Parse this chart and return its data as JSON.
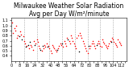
{
  "title": "Milwaukee Weather Solar Radiation",
  "subtitle": "Avg per Day W/m²/minute",
  "background_color": "#ffffff",
  "grid_color": "#aaaaaa",
  "ylim": [
    0.3,
    1.15
  ],
  "yticks": [
    0.4,
    0.5,
    0.6,
    0.7,
    0.8,
    0.9,
    1.0,
    1.1
  ],
  "ytick_labels": [
    "0.4",
    "0.5",
    "0.6",
    "0.7",
    "0.8",
    "0.9",
    "1.0",
    "1.1"
  ],
  "red_points_x": [
    1,
    2,
    3,
    4,
    5,
    6,
    7,
    9,
    10,
    12,
    13,
    14,
    16,
    18,
    20,
    21,
    22,
    23,
    25,
    26,
    27,
    28,
    29,
    31,
    33,
    34,
    35,
    36,
    38,
    39,
    40,
    41,
    42,
    43,
    44,
    45,
    46,
    48,
    49,
    50,
    51,
    53,
    54,
    55,
    56,
    57,
    59,
    60,
    61,
    62,
    63,
    64,
    65,
    66,
    67,
    68,
    70,
    71,
    72,
    73,
    74,
    75,
    76,
    77,
    78,
    80,
    81,
    82,
    83,
    84,
    85,
    86,
    88,
    89,
    90,
    91,
    92,
    93,
    94,
    95,
    96,
    97,
    98,
    99,
    100,
    101,
    103,
    104,
    105,
    106,
    107,
    108,
    109,
    110,
    111,
    112
  ],
  "red_points_y": [
    1.05,
    0.85,
    0.95,
    0.9,
    1.0,
    0.75,
    0.8,
    0.88,
    0.82,
    0.78,
    0.7,
    0.65,
    0.6,
    0.55,
    0.62,
    0.58,
    0.52,
    0.7,
    0.65,
    0.72,
    0.68,
    0.6,
    0.55,
    0.5,
    0.55,
    0.62,
    0.58,
    0.65,
    0.6,
    0.55,
    0.5,
    0.45,
    0.62,
    0.58,
    0.55,
    0.52,
    0.48,
    0.55,
    0.6,
    0.65,
    0.62,
    0.58,
    0.7,
    0.65,
    0.6,
    0.75,
    0.7,
    0.65,
    0.8,
    0.75,
    0.7,
    0.65,
    0.6,
    0.55,
    0.75,
    0.8,
    0.85,
    0.8,
    0.75,
    0.7,
    0.65,
    0.6,
    0.55,
    0.5,
    0.45,
    0.55,
    0.6,
    0.65,
    0.7,
    0.65,
    0.6,
    0.55,
    0.65,
    0.7,
    0.65,
    0.6,
    0.58,
    0.72,
    0.68,
    0.65,
    0.62,
    0.58,
    0.55,
    0.6,
    0.65,
    0.7,
    0.75,
    0.72,
    0.68,
    0.65,
    0.62,
    0.58,
    0.72,
    0.68,
    0.65,
    0.62
  ],
  "black_points_x": [
    8,
    11,
    15,
    17,
    19,
    24,
    30,
    32,
    37,
    47,
    52,
    58,
    69,
    79,
    87,
    102
  ],
  "black_points_y": [
    0.78,
    0.72,
    0.58,
    0.62,
    0.68,
    0.62,
    0.52,
    0.6,
    0.58,
    0.52,
    0.65,
    0.72,
    0.48,
    0.6,
    0.62,
    0.68
  ],
  "vlines_x": [
    13,
    26,
    39,
    52,
    65,
    78,
    91,
    104
  ],
  "n_xpoints": 118,
  "title_fontsize": 5.5,
  "tick_fontsize": 3.5
}
